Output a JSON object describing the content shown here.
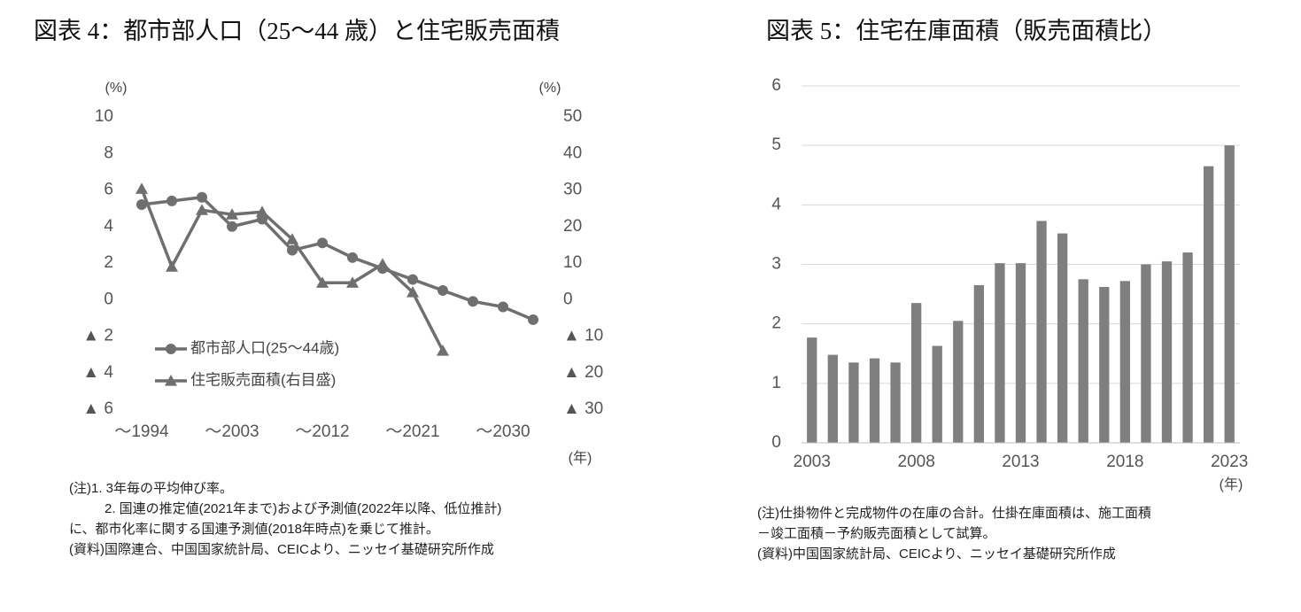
{
  "chart_data": [
    {
      "type": "line",
      "title": "図表 4：都市部人口（25～44 歳）と住宅販売面積",
      "y_unit_label": "(%)",
      "y2_unit_label": "(%)",
      "x_unit_label": "(年)",
      "categories": [
        "～1994",
        null,
        null,
        "～2003",
        null,
        null,
        "～2012",
        null,
        null,
        "～2021",
        null,
        null,
        "～2030",
        null
      ],
      "ylim": [
        -6,
        10
      ],
      "yticks": [
        10,
        8,
        6,
        4,
        2,
        0,
        {
          "value": -2,
          "label": "▲ 2"
        },
        {
          "value": -4,
          "label": "▲ 4"
        },
        {
          "value": -6,
          "label": "▲ 6"
        }
      ],
      "y2lim": [
        -30,
        50
      ],
      "y2ticks": [
        50,
        40,
        30,
        20,
        10,
        0,
        {
          "value": -10,
          "label": "▲ 10"
        },
        {
          "value": -20,
          "label": "▲ 20"
        },
        {
          "value": -30,
          "label": "▲ 30"
        }
      ],
      "grid": false,
      "legend": "lower left",
      "series": [
        {
          "name": "都市部人口(25～44歳)",
          "color": "#6f6f6f",
          "marker": "circle",
          "values": [
            5.2,
            5.4,
            5.6,
            4.0,
            4.4,
            2.7,
            3.1,
            2.3,
            1.7,
            1.1,
            0.5,
            -0.1,
            -0.4,
            -1.1
          ]
        },
        {
          "name": "住宅販売面積(右目盛)",
          "color": "#6f6f6f",
          "marker": "triangle",
          "axis": "y2",
          "values": [
            30.3,
            9,
            24.5,
            23.3,
            24,
            16.5,
            4.6,
            4.6,
            9.7,
            2,
            -14,
            null,
            null,
            null
          ]
        }
      ],
      "notes": [
        "(注)1. 3年毎の平均伸び率。",
        "2. 国連の推定値(2021年まで)および予測値(2022年以降、低位推計)",
        "に、都市化率に関する国連予測値(2018年時点)を乗じて推計。",
        "(資料)国際連合、中国国家統計局、CEICより、ニッセイ基礎研究所作成"
      ]
    },
    {
      "type": "bar",
      "title": "図表 5：住宅在庫面積（販売面積比）",
      "x_unit_label": "(年)",
      "categories": [
        "2003",
        null,
        null,
        null,
        null,
        "2008",
        null,
        null,
        null,
        null,
        "2013",
        null,
        null,
        null,
        null,
        "2018",
        null,
        null,
        null,
        null,
        "2023"
      ],
      "values": [
        1.77,
        1.48,
        1.35,
        1.42,
        1.35,
        2.35,
        1.63,
        2.05,
        2.65,
        3.02,
        3.02,
        3.73,
        3.52,
        2.75,
        2.62,
        2.72,
        3.0,
        3.05,
        3.2,
        4.65,
        5.0
      ],
      "color": "#7f7f7f",
      "ylim": [
        0,
        6
      ],
      "yticks": [
        0,
        1,
        2,
        3,
        4,
        5,
        6
      ],
      "grid": true,
      "notes": [
        "(注)仕掛物件と完成物件の在庫の合計。仕掛在庫面積は、施工面積",
        "－竣工面積－予約販売面積として試算。",
        "(資料)中国国家統計局、CEICより、ニッセイ基礎研究所作成"
      ]
    }
  ]
}
